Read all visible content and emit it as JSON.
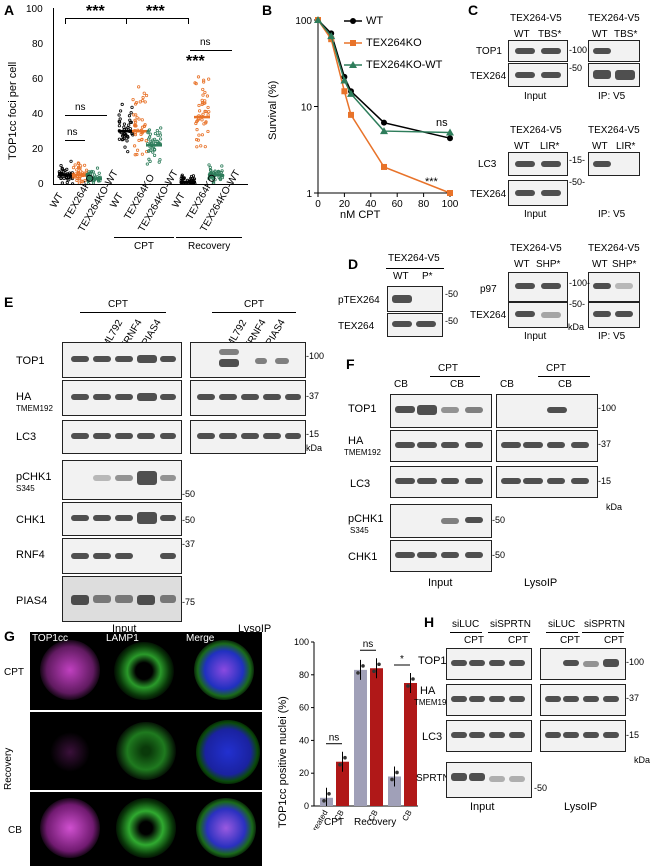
{
  "panels": [
    "A",
    "B",
    "C",
    "D",
    "E",
    "F",
    "G",
    "H"
  ],
  "panelA": {
    "ylabel": "TOP1cc foci per cell",
    "yticks": [
      "0",
      "20",
      "40",
      "60",
      "80",
      "100"
    ],
    "groups": [
      "WT",
      "TEX264KO",
      "TEX264KO-WT",
      "WT",
      "TEX264KO",
      "TEX264KO-WT",
      "WT",
      "TEX264KO",
      "TEX264KO-WT"
    ],
    "conditions": [
      "CPT",
      "Recovery"
    ],
    "sig": [
      "***",
      "***",
      "ns",
      "ns",
      "***",
      "ns",
      "ns"
    ]
  },
  "chart_data": {
    "type": "line",
    "title": "",
    "xlabel": "nM CPT",
    "ylabel": "Survival (%)",
    "x": [
      0,
      10,
      20,
      25,
      50,
      100
    ],
    "xticks": [
      "0",
      "20",
      "40",
      "60",
      "80",
      "100"
    ],
    "yticks": [
      "1",
      "10",
      "100"
    ],
    "yscale": "log",
    "series": [
      {
        "name": "WT",
        "color": "#000000",
        "values": [
          100,
          70,
          22,
          15,
          6.5,
          4.3
        ]
      },
      {
        "name": "TEX264KO",
        "color": "#e8732a",
        "values": [
          100,
          60,
          15,
          8,
          2,
          1
        ]
      },
      {
        "name": "TEX264KO-WT",
        "color": "#2e7d5b",
        "values": [
          100,
          65,
          20,
          14,
          5.2,
          5
        ]
      }
    ],
    "annotations": [
      "ns",
      "***"
    ]
  },
  "panelC": {
    "header": "TEX264-V5",
    "blocks": [
      {
        "lanes": [
          "WT",
          "TBS*"
        ],
        "ip_lanes": [
          "WT",
          "TBS*"
        ],
        "rows": [
          "TOP1",
          "TEX264"
        ],
        "mw": [
          "-100",
          "-50"
        ]
      },
      {
        "lanes": [
          "WT",
          "LIR*"
        ],
        "ip_lanes": [
          "WT",
          "LIR*"
        ],
        "rows": [
          "LC3",
          "TEX264"
        ],
        "mw": [
          "-15-",
          "-50-"
        ]
      },
      {
        "lanes": [
          "WT",
          "SHP*"
        ],
        "ip_lanes": [
          "WT",
          "SHP*"
        ],
        "rows": [
          "p97",
          "TEX264"
        ],
        "mw": [
          "-100-",
          "-50-"
        ]
      }
    ],
    "input": "Input",
    "ip": "IP: V5",
    "kda": "kDa"
  },
  "panelD": {
    "header": "TEX264-V5",
    "lanes": [
      "WT",
      "P*"
    ],
    "rows": [
      "pTEX264",
      "TEX264"
    ],
    "mw": [
      "-50",
      "-50"
    ]
  },
  "panelE": {
    "cpt": "CPT",
    "lanes": [
      "ML792",
      "siRNF4",
      "siPIAS4"
    ],
    "rows": [
      "TOP1",
      "HA",
      "TMEM192",
      "LC3",
      "pCHK1",
      "S345",
      "CHK1",
      "RNF4",
      "PIAS4"
    ],
    "mw": [
      "-100",
      "-37",
      "-15",
      "kDa",
      "-50",
      "-50",
      "-37",
      "-75"
    ],
    "input": "Input",
    "lyso": "LysoIP"
  },
  "panelF": {
    "cpt": "CPT",
    "cb": "CB",
    "rows": [
      "TOP1",
      "HA",
      "TMEM192",
      "LC3",
      "pCHK1",
      "S345",
      "CHK1"
    ],
    "mw": [
      "-100",
      "-37",
      "-15",
      "kDa",
      "-50",
      "-50"
    ],
    "input": "Input",
    "lyso": "LysoIP"
  },
  "panelG": {
    "channels": [
      "TOP1cc",
      "LAMP1",
      "Merge"
    ],
    "rowlabels": [
      "CPT",
      "Recovery",
      "CB"
    ],
    "ylabel": "TOP1cc positive nuclei (%)",
    "yticks": [
      "0",
      "20",
      "40",
      "60",
      "80",
      "100"
    ],
    "xlabels": [
      "Untreated",
      "CB",
      "",
      "CB",
      "",
      "CB"
    ],
    "groups": [
      "CPT",
      "Recovery"
    ],
    "sig": [
      "ns",
      "ns",
      "*"
    ],
    "values": [
      5,
      27,
      83,
      84,
      18,
      75
    ]
  },
  "panelH": {
    "lanes": [
      "siLUC",
      "siSPRTN"
    ],
    "cpt": "CPT",
    "rows": [
      "TOP1",
      "HA",
      "TMEM192",
      "LC3",
      "SPRTN"
    ],
    "mw": [
      "-100",
      "-37",
      "-15",
      "kDa",
      "-50"
    ],
    "input": "Input",
    "lyso": "LysoIP"
  }
}
